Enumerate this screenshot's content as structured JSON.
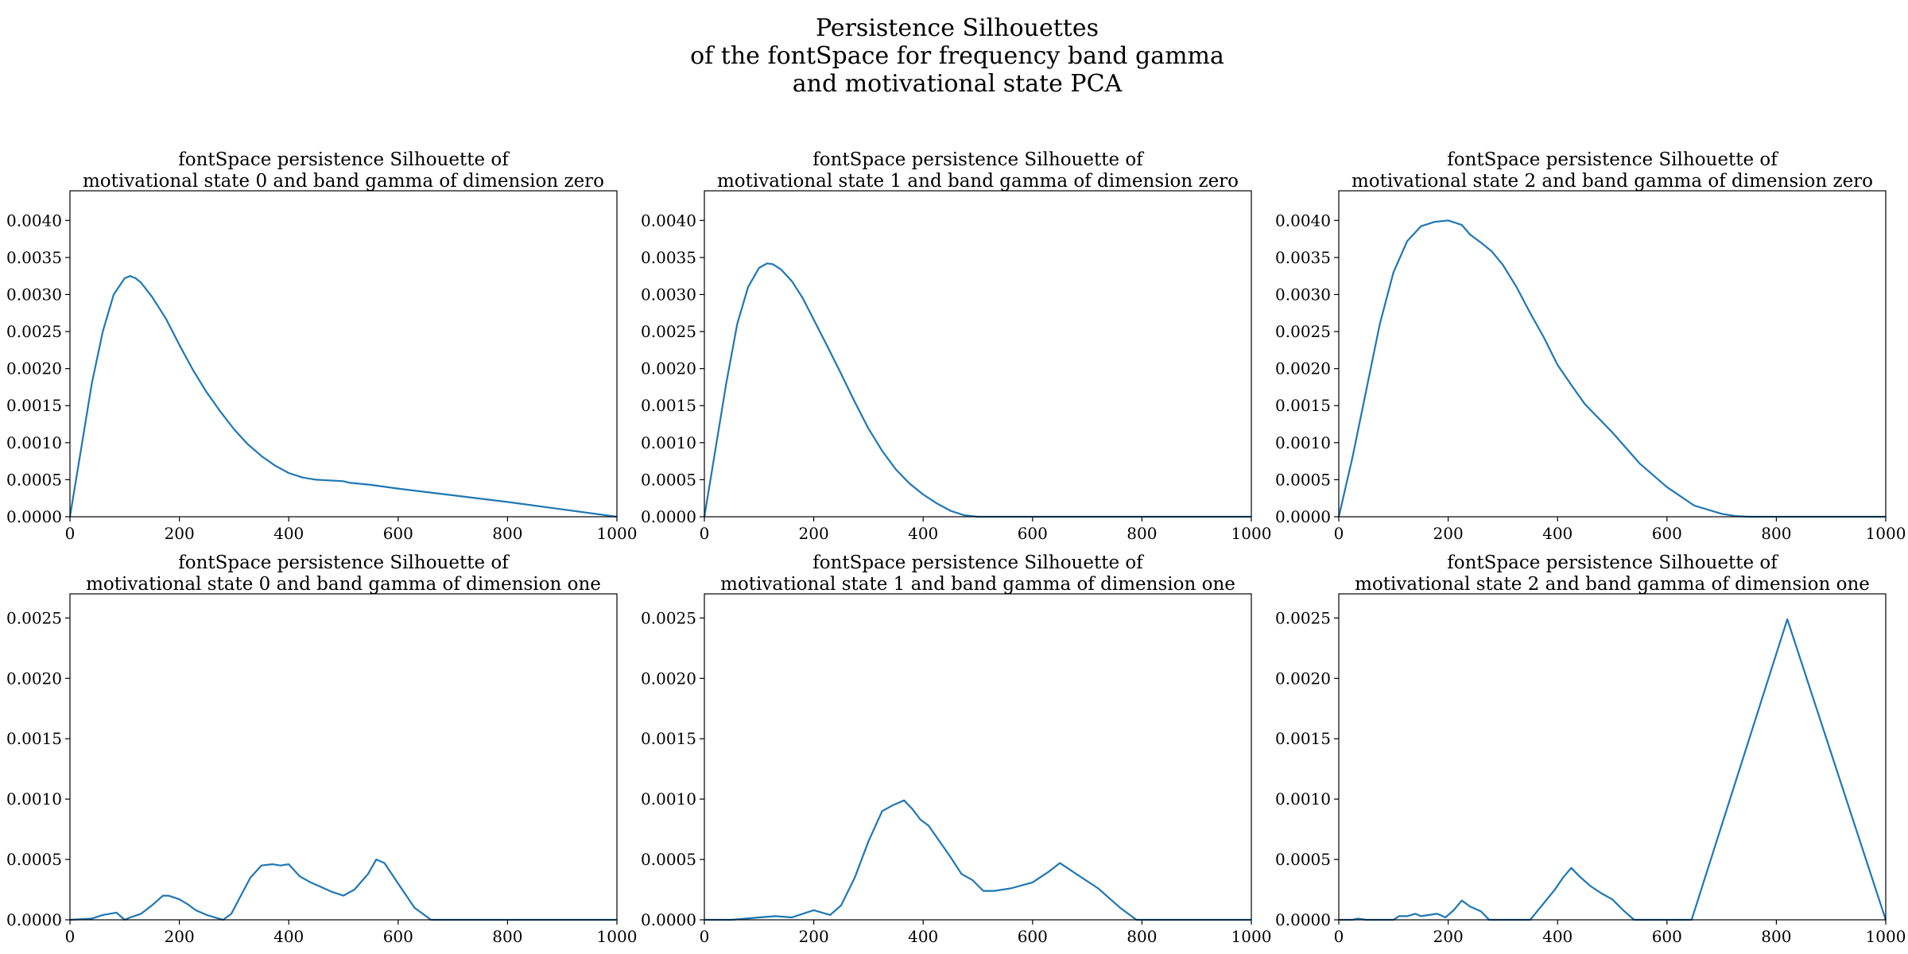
{
  "figure": {
    "title_lines": [
      "Persistence Silhouettes",
      "of the fontSpace for frequency band gamma",
      "and motivational state PCA"
    ],
    "line_color": "#1f77b4"
  },
  "chart_data": [
    {
      "type": "line",
      "title_lines": [
        "fontSpace persistence Silhouette of",
        "motivational state 0 and band gamma of dimension zero"
      ],
      "xlim": [
        0,
        1000
      ],
      "ylim": [
        0,
        0.0044
      ],
      "xticks": [
        0,
        200,
        400,
        600,
        800,
        1000
      ],
      "xtick_labels": [
        "0",
        "200",
        "400",
        "600",
        "800",
        "1000"
      ],
      "yticks": [
        0,
        0.0005,
        0.001,
        0.0015,
        0.002,
        0.0025,
        0.003,
        0.0035,
        0.004
      ],
      "ytick_labels": [
        "0.0000",
        "0.0005",
        "0.0010",
        "0.0015",
        "0.0020",
        "0.0025",
        "0.0030",
        "0.0035",
        "0.0040"
      ],
      "x": [
        0,
        20,
        40,
        60,
        80,
        100,
        110,
        120,
        130,
        150,
        175,
        200,
        225,
        250,
        275,
        300,
        325,
        350,
        375,
        400,
        425,
        450,
        475,
        500,
        510,
        550,
        600,
        700,
        800,
        900,
        1000
      ],
      "y": [
        0,
        0.0009,
        0.0018,
        0.0025,
        0.003,
        0.00322,
        0.00325,
        0.00322,
        0.00316,
        0.00297,
        0.00268,
        0.00232,
        0.00198,
        0.00168,
        0.00142,
        0.00118,
        0.00098,
        0.00082,
        0.00069,
        0.00059,
        0.00053,
        0.0005,
        0.00049,
        0.00048,
        0.00046,
        0.00043,
        0.00038,
        0.00029,
        0.0002,
        0.0001,
        0
      ]
    },
    {
      "type": "line",
      "title_lines": [
        "fontSpace persistence Silhouette of",
        "motivational state 1 and band gamma of dimension zero"
      ],
      "xlim": [
        0,
        1000
      ],
      "ylim": [
        0,
        0.0044
      ],
      "xticks": [
        0,
        200,
        400,
        600,
        800,
        1000
      ],
      "xtick_labels": [
        "0",
        "200",
        "400",
        "600",
        "800",
        "1000"
      ],
      "yticks": [
        0,
        0.0005,
        0.001,
        0.0015,
        0.002,
        0.0025,
        0.003,
        0.0035,
        0.004
      ],
      "ytick_labels": [
        "0.0000",
        "0.0005",
        "0.0010",
        "0.0015",
        "0.0020",
        "0.0025",
        "0.0030",
        "0.0035",
        "0.0040"
      ],
      "x": [
        0,
        20,
        40,
        60,
        80,
        100,
        115,
        125,
        140,
        160,
        180,
        200,
        225,
        250,
        275,
        300,
        325,
        350,
        375,
        400,
        425,
        450,
        475,
        500,
        550,
        600,
        700,
        800,
        900,
        1000
      ],
      "y": [
        0,
        0.0009,
        0.0018,
        0.0026,
        0.0031,
        0.00336,
        0.00342,
        0.00341,
        0.00334,
        0.00318,
        0.00295,
        0.00266,
        0.0023,
        0.00193,
        0.00155,
        0.00119,
        0.00089,
        0.00064,
        0.00045,
        0.0003,
        0.00018,
        8e-05,
        2e-05,
        0,
        0,
        0,
        0,
        0,
        0,
        0
      ]
    },
    {
      "type": "line",
      "title_lines": [
        "fontSpace persistence Silhouette of",
        "motivational state 2 and band gamma of dimension zero"
      ],
      "xlim": [
        0,
        1000
      ],
      "ylim": [
        0,
        0.0044
      ],
      "xticks": [
        0,
        200,
        400,
        600,
        800,
        1000
      ],
      "xtick_labels": [
        "0",
        "200",
        "400",
        "600",
        "800",
        "1000"
      ],
      "yticks": [
        0,
        0.0005,
        0.001,
        0.0015,
        0.002,
        0.0025,
        0.003,
        0.0035,
        0.004
      ],
      "ytick_labels": [
        "0.0000",
        "0.0005",
        "0.0010",
        "0.0015",
        "0.0020",
        "0.0025",
        "0.0030",
        "0.0035",
        "0.0040"
      ],
      "x": [
        0,
        25,
        50,
        75,
        100,
        125,
        150,
        175,
        200,
        225,
        240,
        260,
        280,
        300,
        325,
        350,
        375,
        400,
        425,
        450,
        500,
        550,
        600,
        650,
        700,
        725,
        750,
        800,
        900,
        1000
      ],
      "y": [
        0,
        0.0008,
        0.0017,
        0.0026,
        0.0033,
        0.00372,
        0.00392,
        0.00398,
        0.004,
        0.00394,
        0.00381,
        0.0037,
        0.00358,
        0.0034,
        0.0031,
        0.00275,
        0.00242,
        0.00205,
        0.00178,
        0.00152,
        0.00114,
        0.00072,
        0.0004,
        0.00015,
        4e-05,
        1e-05,
        0,
        0,
        0,
        0
      ]
    },
    {
      "type": "line",
      "title_lines": [
        "fontSpace persistence Silhouette of",
        "motivational state 0 and band gamma of dimension one"
      ],
      "xlim": [
        0,
        1000
      ],
      "ylim": [
        0,
        0.0027
      ],
      "xticks": [
        0,
        200,
        400,
        600,
        800,
        1000
      ],
      "xtick_labels": [
        "0",
        "200",
        "400",
        "600",
        "800",
        "1000"
      ],
      "yticks": [
        0,
        0.0005,
        0.001,
        0.0015,
        0.002,
        0.0025
      ],
      "ytick_labels": [
        "0.0000",
        "0.0005",
        "0.0010",
        "0.0015",
        "0.0020",
        "0.0025"
      ],
      "x": [
        0,
        40,
        60,
        85,
        100,
        110,
        130,
        150,
        170,
        180,
        200,
        215,
        230,
        250,
        280,
        295,
        310,
        330,
        350,
        370,
        385,
        400,
        420,
        440,
        460,
        480,
        500,
        520,
        545,
        560,
        575,
        600,
        630,
        660,
        700,
        800,
        900,
        1000
      ],
      "y": [
        0,
        1e-05,
        4e-05,
        6e-05,
        0,
        2e-05,
        5e-05,
        0.00012,
        0.0002,
        0.0002,
        0.00017,
        0.00013,
        8e-05,
        4e-05,
        0,
        5e-05,
        0.00018,
        0.00035,
        0.00045,
        0.00046,
        0.00045,
        0.00046,
        0.00036,
        0.00031,
        0.00027,
        0.00023,
        0.0002,
        0.00025,
        0.00038,
        0.0005,
        0.00047,
        0.0003,
        0.0001,
        0,
        0,
        0,
        0,
        0
      ]
    },
    {
      "type": "line",
      "title_lines": [
        "fontSpace persistence Silhouette of",
        "motivational state 1 and band gamma of dimension one"
      ],
      "xlim": [
        0,
        1000
      ],
      "ylim": [
        0,
        0.0027
      ],
      "xticks": [
        0,
        200,
        400,
        600,
        800,
        1000
      ],
      "xtick_labels": [
        "0",
        "200",
        "400",
        "600",
        "800",
        "1000"
      ],
      "yticks": [
        0,
        0.0005,
        0.001,
        0.0015,
        0.002,
        0.0025
      ],
      "ytick_labels": [
        "0.0000",
        "0.0005",
        "0.0010",
        "0.0015",
        "0.0020",
        "0.0025"
      ],
      "x": [
        0,
        50,
        100,
        130,
        160,
        180,
        200,
        215,
        230,
        250,
        275,
        300,
        325,
        345,
        365,
        380,
        395,
        410,
        430,
        450,
        470,
        490,
        510,
        530,
        560,
        600,
        630,
        650,
        680,
        720,
        760,
        790,
        800,
        900,
        1000
      ],
      "y": [
        0,
        0,
        2e-05,
        3e-05,
        2e-05,
        5e-05,
        8e-05,
        6e-05,
        4e-05,
        0.00012,
        0.00035,
        0.00065,
        0.0009,
        0.00095,
        0.00099,
        0.00092,
        0.00083,
        0.00078,
        0.00065,
        0.00052,
        0.00038,
        0.00033,
        0.00024,
        0.00024,
        0.00026,
        0.00031,
        0.0004,
        0.00047,
        0.00038,
        0.00026,
        0.0001,
        0,
        0,
        0,
        0
      ]
    },
    {
      "type": "line",
      "title_lines": [
        "fontSpace persistence Silhouette of",
        "motivational state 2 and band gamma of dimension one"
      ],
      "xlim": [
        0,
        1000
      ],
      "ylim": [
        0,
        0.0027
      ],
      "xticks": [
        0,
        200,
        400,
        600,
        800,
        1000
      ],
      "xtick_labels": [
        "0",
        "200",
        "400",
        "600",
        "800",
        "1000"
      ],
      "yticks": [
        0,
        0.0005,
        0.001,
        0.0015,
        0.002,
        0.0025
      ],
      "ytick_labels": [
        "0.0000",
        "0.0005",
        "0.0010",
        "0.0015",
        "0.0020",
        "0.0025"
      ],
      "x": [
        0,
        25,
        35,
        50,
        100,
        110,
        125,
        140,
        150,
        165,
        180,
        195,
        210,
        225,
        240,
        260,
        275,
        300,
        350,
        395,
        410,
        425,
        440,
        460,
        480,
        500,
        520,
        540,
        560,
        600,
        645,
        820,
        1000
      ],
      "y": [
        0,
        0,
        1e-05,
        0,
        0,
        3e-05,
        3e-05,
        5e-05,
        3e-05,
        4e-05,
        5e-05,
        2e-05,
        8e-05,
        0.00016,
        0.00011,
        7e-05,
        0,
        0,
        0,
        0.00025,
        0.00035,
        0.00043,
        0.00036,
        0.00028,
        0.00022,
        0.00017,
        8e-05,
        0,
        0,
        0,
        0,
        0.00249,
        0
      ]
    }
  ]
}
